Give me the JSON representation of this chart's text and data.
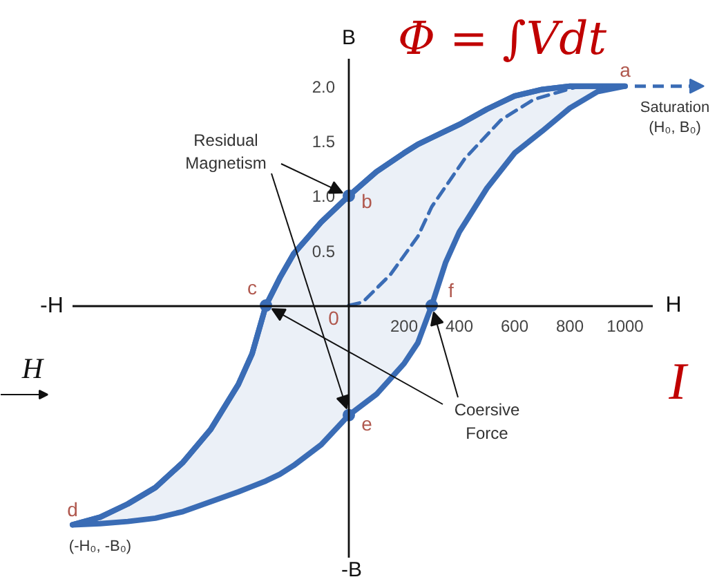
{
  "chart_data": {
    "type": "line",
    "xlabel": "H",
    "ylabel": "B",
    "xlim": [
      -1000,
      1100
    ],
    "ylim": [
      -2.3,
      2.25
    ],
    "xticks": [
      200,
      400,
      600,
      800,
      1000
    ],
    "yticks": [
      {
        "value": 0.5,
        "label": "0.5"
      },
      {
        "value": 1,
        "label": "1.0"
      },
      {
        "value": 1.5,
        "label": "1.5"
      },
      {
        "value": 2,
        "label": "2.0"
      }
    ],
    "series": [
      {
        "color": "#3a6cb5",
        "line_style": "solid",
        "x": [
          -1000,
          -900,
          -800,
          -700,
          -600,
          -500,
          -400,
          -350,
          -300,
          -250,
          -200,
          -100,
          0,
          100,
          200,
          250,
          300,
          350,
          400,
          500,
          600,
          700,
          800,
          900,
          1000
        ],
        "values": [
          -2.0,
          -1.93,
          -1.81,
          -1.66,
          -1.43,
          -1.13,
          -0.72,
          -0.44,
          0,
          0.25,
          0.47,
          0.76,
          1.0,
          1.22,
          1.39,
          1.47,
          1.53,
          1.59,
          1.65,
          1.79,
          1.91,
          1.97,
          2.0,
          2.0,
          2.0
        ],
        "lower": [
          -2.0,
          -1.99,
          -1.97,
          -1.94,
          -1.88,
          -1.79,
          -1.7,
          -1.65,
          -1.6,
          -1.54,
          -1.46,
          -1.27,
          -1.0,
          -0.81,
          -0.53,
          -0.34,
          0,
          0.39,
          0.67,
          1.07,
          1.39,
          1.59,
          1.8,
          1.95,
          2.0
        ],
        "upper": [
          -2.0,
          -1.93,
          -1.81,
          -1.66,
          -1.43,
          -1.13,
          -0.72,
          -0.44,
          0,
          0.25,
          0.47,
          0.76,
          1.0,
          1.22,
          1.39,
          1.47,
          1.53,
          1.59,
          1.65,
          1.79,
          1.91,
          1.97,
          2.0,
          2.0,
          2.0
        ]
      },
      {
        "color": "#3a6cb5",
        "line_style": "dashed",
        "x": [
          0,
          50,
          150,
          250,
          300,
          420,
          550,
          670,
          820,
          1000
        ],
        "values": [
          0,
          0.03,
          0.28,
          0.63,
          0.9,
          1.34,
          1.69,
          1.88,
          1.99,
          2.0
        ]
      },
      {
        "type": "scatter",
        "color": "#3a6cb5",
        "marker": "circle",
        "x": [
          -300,
          0,
          0,
          300
        ],
        "values": [
          0,
          1.0,
          -1.0,
          0
        ]
      }
    ],
    "annotations": [
      {
        "text": "a",
        "x": 1000,
        "y": 2.0
      },
      {
        "text": "b",
        "x": 0,
        "y": 1.0
      },
      {
        "text": "c",
        "x": -300,
        "y": 0
      },
      {
        "text": "d",
        "x": -1000,
        "y": -2.0
      },
      {
        "text": "e",
        "x": 0,
        "y": -1.0
      },
      {
        "text": "f",
        "x": 300,
        "y": 0
      },
      {
        "text": "0",
        "x": 0,
        "y": 0
      },
      {
        "text": "Saturation\n(H₀, B₀)",
        "x": 1000,
        "y": 2.0
      },
      {
        "text": "(-H₀, -B₀)",
        "x": -1000,
        "y": -2.0
      },
      {
        "text": "Residual\nMagnetism",
        "x": 0,
        "y": 1.0
      },
      {
        "text": "Coersive\nForce",
        "x": 300,
        "y": 0
      },
      "-H",
      "-B",
      "Φ = ∫Vdt",
      "H",
      "I"
    ]
  }
}
